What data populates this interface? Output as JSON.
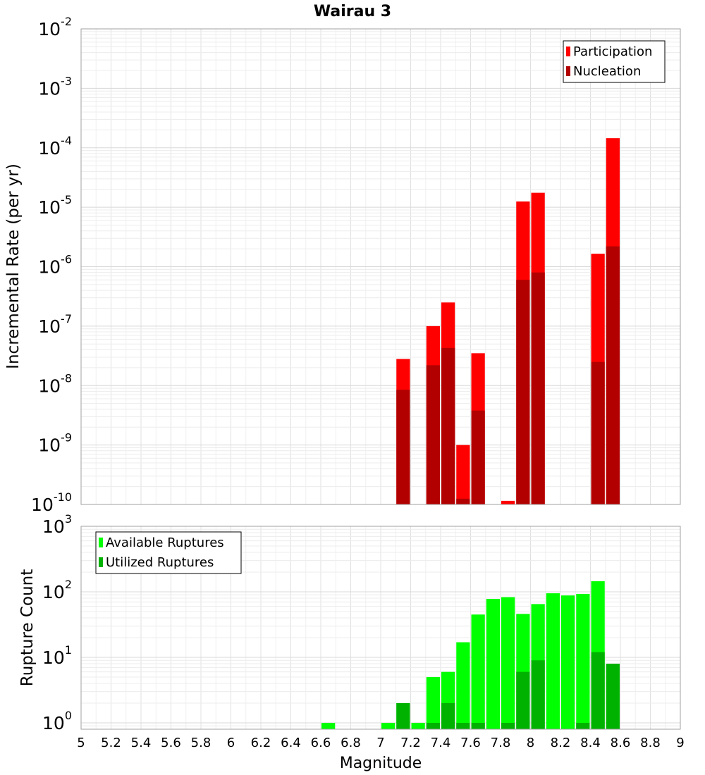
{
  "chart_data": [
    {
      "type": "bar",
      "title": "Wairau 3",
      "ylabel": "Incremental Rate (per yr)",
      "yscale": "log",
      "ylim": [
        1e-10,
        0.01
      ],
      "xlim": [
        5,
        9
      ],
      "grid": true,
      "legend": "top-right",
      "ytick_labels": [
        {
          "base": "10",
          "exp": "-10"
        },
        {
          "base": "10",
          "exp": "-9"
        },
        {
          "base": "10",
          "exp": "-8"
        },
        {
          "base": "10",
          "exp": "-7"
        },
        {
          "base": "10",
          "exp": "-6"
        },
        {
          "base": "10",
          "exp": "-5"
        },
        {
          "base": "10",
          "exp": "-4"
        },
        {
          "base": "10",
          "exp": "-3"
        },
        {
          "base": "10",
          "exp": "-2"
        }
      ],
      "series": [
        {
          "name": "Participation",
          "color": "#ff0000",
          "x": [
            7.1,
            7.3,
            7.4,
            7.5,
            7.6,
            7.8,
            7.9,
            8.0,
            8.4,
            8.5
          ],
          "values": [
            2.8e-08,
            1e-07,
            2.5e-07,
            1e-09,
            3.5e-08,
            1.15e-10,
            1.25e-05,
            1.75e-05,
            1.65e-06,
            0.000145
          ]
        },
        {
          "name": "Nucleation",
          "color": "#b20000",
          "x": [
            7.1,
            7.3,
            7.4,
            7.5,
            7.6,
            7.9,
            8.0,
            8.4,
            8.5
          ],
          "values": [
            8.5e-09,
            2.2e-08,
            4.3e-08,
            1.25e-10,
            3.8e-09,
            6e-07,
            8e-07,
            2.5e-08,
            2.2e-06
          ]
        }
      ]
    },
    {
      "type": "bar",
      "xlabel": "Magnitude",
      "ylabel": "Rupture Count",
      "yscale": "log",
      "ylim": [
        0.8,
        1000
      ],
      "xlim": [
        5,
        9
      ],
      "grid": true,
      "legend": "top-left",
      "ytick_labels": [
        {
          "base": "10",
          "exp": "0"
        },
        {
          "base": "10",
          "exp": "1"
        },
        {
          "base": "10",
          "exp": "2"
        },
        {
          "base": "10",
          "exp": "3"
        }
      ],
      "x_ticks": [
        "5",
        "5.2",
        "5.4",
        "5.6",
        "5.8",
        "6",
        "6.2",
        "6.4",
        "6.6",
        "6.8",
        "7",
        "7.2",
        "7.4",
        "7.6",
        "7.8",
        "8",
        "8.2",
        "8.4",
        "8.6",
        "8.8",
        "9"
      ],
      "series": [
        {
          "name": "Available Ruptures",
          "color": "#00ff00",
          "x": [
            6.6,
            7.0,
            7.1,
            7.2,
            7.3,
            7.4,
            7.5,
            7.6,
            7.7,
            7.8,
            7.9,
            8.0,
            8.1,
            8.2,
            8.3,
            8.4,
            8.5
          ],
          "values": [
            1,
            1,
            2,
            1,
            5,
            6,
            17,
            45,
            78,
            83,
            46,
            65,
            95,
            88,
            93,
            145,
            8
          ]
        },
        {
          "name": "Utilized Ruptures",
          "color": "#00b200",
          "x": [
            7.1,
            7.3,
            7.4,
            7.5,
            7.6,
            7.8,
            7.9,
            8.0,
            8.3,
            8.4,
            8.5
          ],
          "values": [
            2,
            1,
            2,
            1,
            1,
            1,
            6,
            9,
            1,
            12,
            8
          ]
        }
      ]
    }
  ]
}
